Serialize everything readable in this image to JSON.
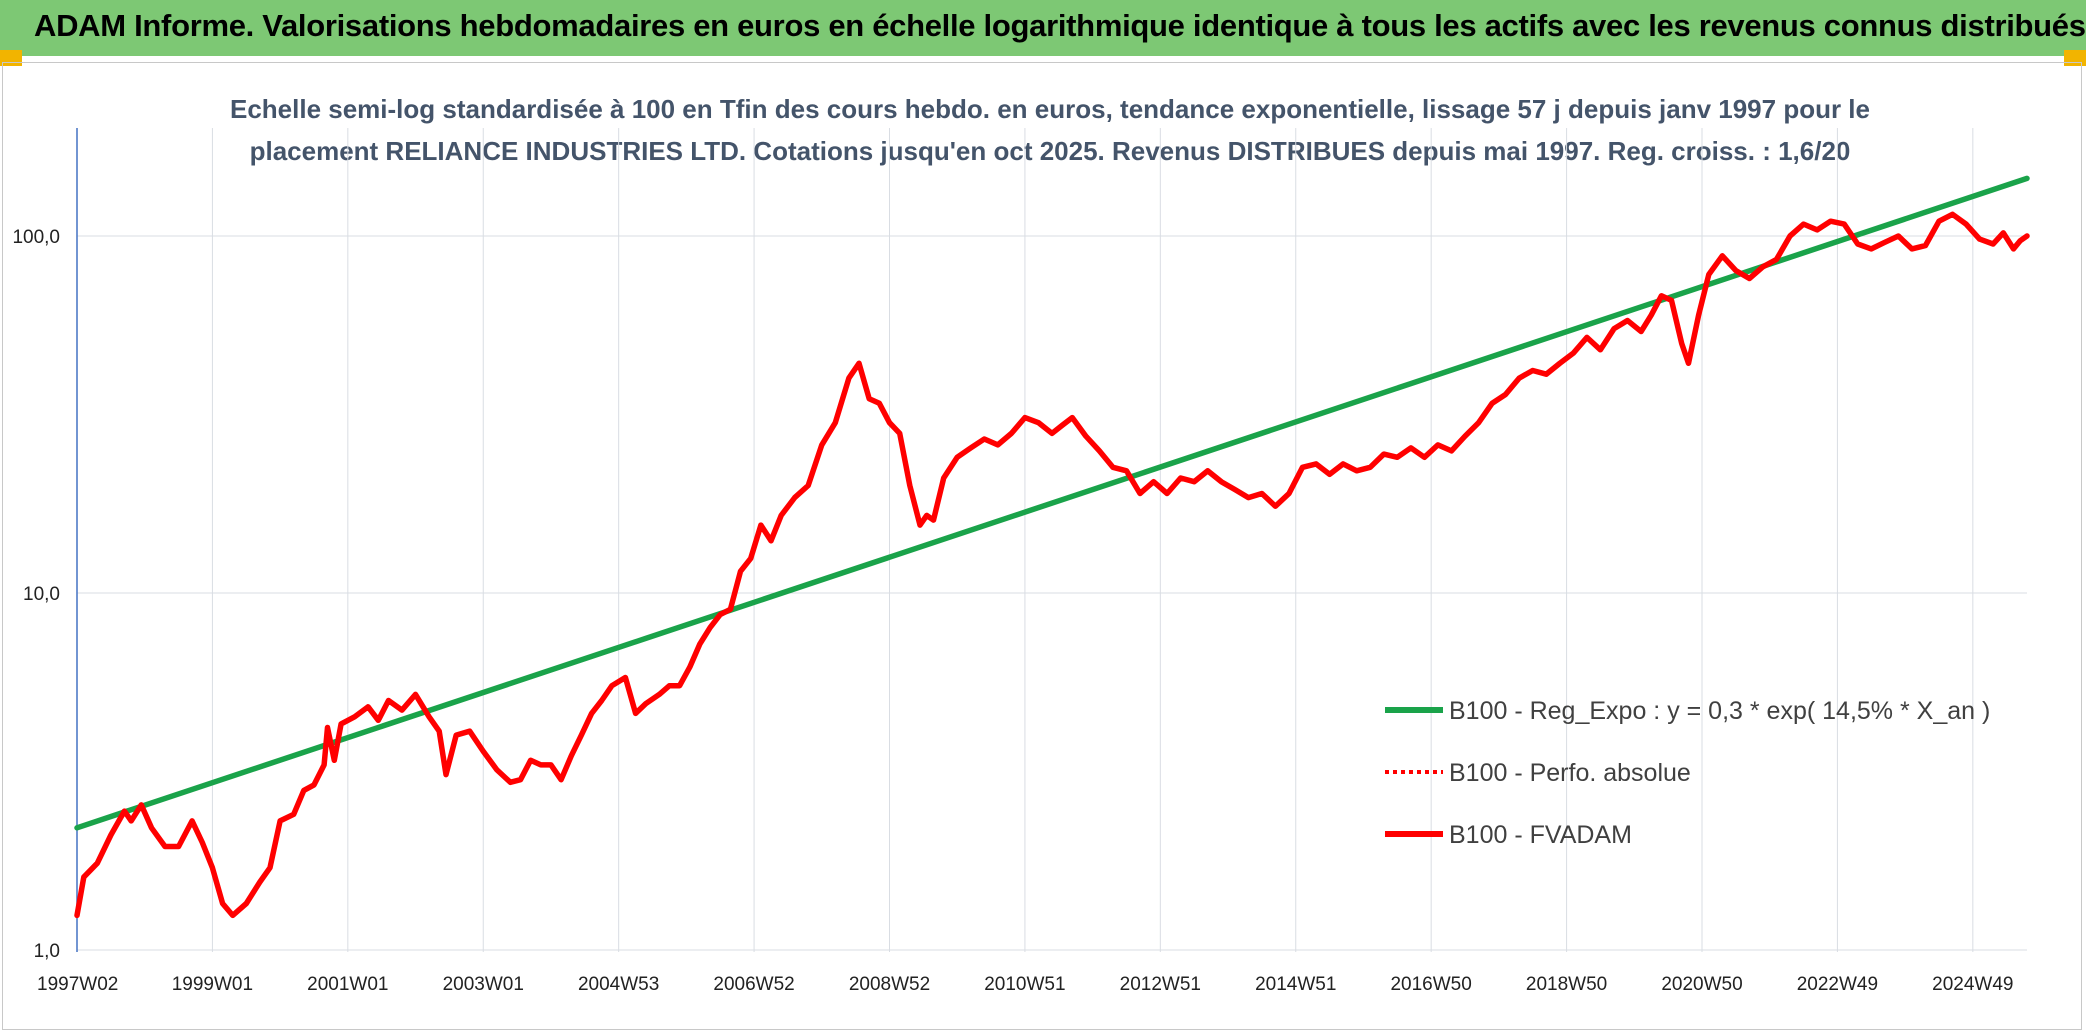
{
  "header": {
    "title": "ADAM Informe. Valorisations hebdomadaires en euros en échelle logarithmique identique à tous les actifs avec les revenus connus distribués"
  },
  "chart_data": {
    "type": "line",
    "title": "Echelle semi-log standardisée à 100 en Tfin des cours hebdo. en euros, tendance exponentielle, lissage 57 j depuis janv 1997 pour le placement RELIANCE INDUSTRIES LTD. Cotations jusqu'en oct 2025. Revenus DISTRIBUES depuis mai 1997. Reg. croiss. : 1,6/20",
    "title_lines": [
      "Echelle semi-log standardisée à 100 en Tfin des cours hebdo. en euros, tendance exponentielle, lissage 57 j depuis janv 1997 pour le",
      "placement RELIANCE INDUSTRIES LTD. Cotations jusqu'en oct 2025. Revenus DISTRIBUES depuis mai 1997. Reg. croiss. : 1,6/20"
    ],
    "y_scale": "log",
    "ylim": [
      1,
      200
    ],
    "xlim": [
      1997.0,
      2025.8
    ],
    "y_ticks": [
      {
        "value": 1,
        "label": "1,0"
      },
      {
        "value": 10,
        "label": "10,0"
      },
      {
        "value": 100,
        "label": "100,0"
      }
    ],
    "x_ticks": [
      {
        "value": 1997.0,
        "label": "1997W02"
      },
      {
        "value": 1999.0,
        "label": "1999W01"
      },
      {
        "value": 2001.0,
        "label": "2001W01"
      },
      {
        "value": 2003.0,
        "label": "2003W01"
      },
      {
        "value": 2005.0,
        "label": "2004W53"
      },
      {
        "value": 2007.0,
        "label": "2006W52"
      },
      {
        "value": 2009.0,
        "label": "2008W52"
      },
      {
        "value": 2011.0,
        "label": "2010W51"
      },
      {
        "value": 2013.0,
        "label": "2012W51"
      },
      {
        "value": 2015.0,
        "label": "2014W51"
      },
      {
        "value": 2017.0,
        "label": "2016W50"
      },
      {
        "value": 2019.0,
        "label": "2018W50"
      },
      {
        "value": 2021.0,
        "label": "2020W50"
      },
      {
        "value": 2023.0,
        "label": "2022W49"
      },
      {
        "value": 2025.0,
        "label": "2024W49"
      }
    ],
    "grid": "vertical and horizontal",
    "legend_position": "right",
    "series": [
      {
        "name": "B100 - Reg_Expo : y = 0,3 * exp( 14,5% *  X_an )",
        "color": "#1aa34a",
        "style": "solid",
        "points": [
          [
            1997.0,
            2.2
          ],
          [
            2025.8,
            145
          ]
        ]
      },
      {
        "name": "B100 - Perfo. absolue",
        "color": "#ff0000",
        "style": "dotted",
        "points": []
      },
      {
        "name": "B100 - FVADAM",
        "color": "#ff0000",
        "style": "solid",
        "points": [
          [
            1997.0,
            1.25
          ],
          [
            1997.1,
            1.6
          ],
          [
            1997.3,
            1.75
          ],
          [
            1997.5,
            2.1
          ],
          [
            1997.7,
            2.45
          ],
          [
            1997.8,
            2.3
          ],
          [
            1997.95,
            2.55
          ],
          [
            1998.1,
            2.2
          ],
          [
            1998.3,
            1.95
          ],
          [
            1998.5,
            1.95
          ],
          [
            1998.7,
            2.3
          ],
          [
            1998.85,
            2.0
          ],
          [
            1999.0,
            1.7
          ],
          [
            1999.15,
            1.35
          ],
          [
            1999.3,
            1.25
          ],
          [
            1999.5,
            1.35
          ],
          [
            1999.7,
            1.55
          ],
          [
            1999.85,
            1.7
          ],
          [
            2000.0,
            2.3
          ],
          [
            2000.2,
            2.4
          ],
          [
            2000.35,
            2.8
          ],
          [
            2000.5,
            2.9
          ],
          [
            2000.65,
            3.3
          ],
          [
            2000.7,
            4.2
          ],
          [
            2000.8,
            3.4
          ],
          [
            2000.9,
            4.3
          ],
          [
            2001.1,
            4.5
          ],
          [
            2001.3,
            4.8
          ],
          [
            2001.45,
            4.4
          ],
          [
            2001.6,
            5.0
          ],
          [
            2001.8,
            4.7
          ],
          [
            2002.0,
            5.2
          ],
          [
            2002.2,
            4.5
          ],
          [
            2002.35,
            4.1
          ],
          [
            2002.45,
            3.1
          ],
          [
            2002.6,
            4.0
          ],
          [
            2002.8,
            4.1
          ],
          [
            2003.0,
            3.6
          ],
          [
            2003.2,
            3.2
          ],
          [
            2003.4,
            2.95
          ],
          [
            2003.55,
            3.0
          ],
          [
            2003.7,
            3.4
          ],
          [
            2003.85,
            3.3
          ],
          [
            2004.0,
            3.3
          ],
          [
            2004.15,
            3.0
          ],
          [
            2004.3,
            3.5
          ],
          [
            2004.45,
            4.0
          ],
          [
            2004.6,
            4.6
          ],
          [
            2004.75,
            5.0
          ],
          [
            2004.9,
            5.5
          ],
          [
            2005.1,
            5.8
          ],
          [
            2005.25,
            4.6
          ],
          [
            2005.4,
            4.9
          ],
          [
            2005.6,
            5.2
          ],
          [
            2005.75,
            5.5
          ],
          [
            2005.9,
            5.5
          ],
          [
            2006.05,
            6.2
          ],
          [
            2006.2,
            7.2
          ],
          [
            2006.35,
            8.0
          ],
          [
            2006.5,
            8.7
          ],
          [
            2006.65,
            9.0
          ],
          [
            2006.8,
            11.5
          ],
          [
            2006.95,
            12.5
          ],
          [
            2007.1,
            15.5
          ],
          [
            2007.25,
            14.0
          ],
          [
            2007.4,
            16.5
          ],
          [
            2007.6,
            18.5
          ],
          [
            2007.8,
            20.0
          ],
          [
            2008.0,
            26.0
          ],
          [
            2008.2,
            30.0
          ],
          [
            2008.4,
            40.0
          ],
          [
            2008.55,
            44.0
          ],
          [
            2008.7,
            35.0
          ],
          [
            2008.85,
            34.0
          ],
          [
            2009.0,
            30.0
          ],
          [
            2009.15,
            28.0
          ],
          [
            2009.3,
            20.0
          ],
          [
            2009.45,
            15.5
          ],
          [
            2009.55,
            16.5
          ],
          [
            2009.65,
            16.0
          ],
          [
            2009.8,
            21.0
          ],
          [
            2010.0,
            24.0
          ],
          [
            2010.2,
            25.5
          ],
          [
            2010.4,
            27.0
          ],
          [
            2010.6,
            26.0
          ],
          [
            2010.8,
            28.0
          ],
          [
            2011.0,
            31.0
          ],
          [
            2011.2,
            30.0
          ],
          [
            2011.4,
            28.0
          ],
          [
            2011.55,
            29.5
          ],
          [
            2011.7,
            31.0
          ],
          [
            2011.9,
            27.5
          ],
          [
            2012.1,
            25.0
          ],
          [
            2012.3,
            22.5
          ],
          [
            2012.5,
            22.0
          ],
          [
            2012.7,
            19.0
          ],
          [
            2012.9,
            20.5
          ],
          [
            2013.1,
            19.0
          ],
          [
            2013.3,
            21.0
          ],
          [
            2013.5,
            20.5
          ],
          [
            2013.7,
            22.0
          ],
          [
            2013.9,
            20.5
          ],
          [
            2014.1,
            19.5
          ],
          [
            2014.3,
            18.5
          ],
          [
            2014.5,
            19.0
          ],
          [
            2014.7,
            17.5
          ],
          [
            2014.9,
            19.0
          ],
          [
            2015.1,
            22.5
          ],
          [
            2015.3,
            23.0
          ],
          [
            2015.5,
            21.5
          ],
          [
            2015.7,
            23.0
          ],
          [
            2015.9,
            22.0
          ],
          [
            2016.1,
            22.5
          ],
          [
            2016.3,
            24.5
          ],
          [
            2016.5,
            24.0
          ],
          [
            2016.7,
            25.5
          ],
          [
            2016.9,
            24.0
          ],
          [
            2017.1,
            26.0
          ],
          [
            2017.3,
            25.0
          ],
          [
            2017.5,
            27.5
          ],
          [
            2017.7,
            30.0
          ],
          [
            2017.9,
            34.0
          ],
          [
            2018.1,
            36.0
          ],
          [
            2018.3,
            40.0
          ],
          [
            2018.5,
            42.0
          ],
          [
            2018.7,
            41.0
          ],
          [
            2018.9,
            44.0
          ],
          [
            2019.1,
            47.0
          ],
          [
            2019.3,
            52.0
          ],
          [
            2019.5,
            48.0
          ],
          [
            2019.7,
            55.0
          ],
          [
            2019.9,
            58.0
          ],
          [
            2020.1,
            54.0
          ],
          [
            2020.25,
            60.0
          ],
          [
            2020.4,
            68.0
          ],
          [
            2020.55,
            66.0
          ],
          [
            2020.7,
            50.0
          ],
          [
            2020.8,
            44.0
          ],
          [
            2020.95,
            60.0
          ],
          [
            2021.1,
            78.0
          ],
          [
            2021.3,
            88.0
          ],
          [
            2021.5,
            80.0
          ],
          [
            2021.7,
            76.0
          ],
          [
            2021.9,
            82.0
          ],
          [
            2022.1,
            86.0
          ],
          [
            2022.3,
            100.0
          ],
          [
            2022.5,
            108.0
          ],
          [
            2022.7,
            104.0
          ],
          [
            2022.9,
            110.0
          ],
          [
            2023.1,
            108.0
          ],
          [
            2023.3,
            95.0
          ],
          [
            2023.5,
            92.0
          ],
          [
            2023.7,
            96.0
          ],
          [
            2023.9,
            100.0
          ],
          [
            2024.1,
            92.0
          ],
          [
            2024.3,
            94.0
          ],
          [
            2024.5,
            110.0
          ],
          [
            2024.7,
            115.0
          ],
          [
            2024.9,
            108.0
          ],
          [
            2025.1,
            98.0
          ],
          [
            2025.3,
            95.0
          ],
          [
            2025.45,
            102.0
          ],
          [
            2025.6,
            92.0
          ],
          [
            2025.7,
            97.0
          ],
          [
            2025.8,
            100.0
          ]
        ]
      }
    ]
  }
}
